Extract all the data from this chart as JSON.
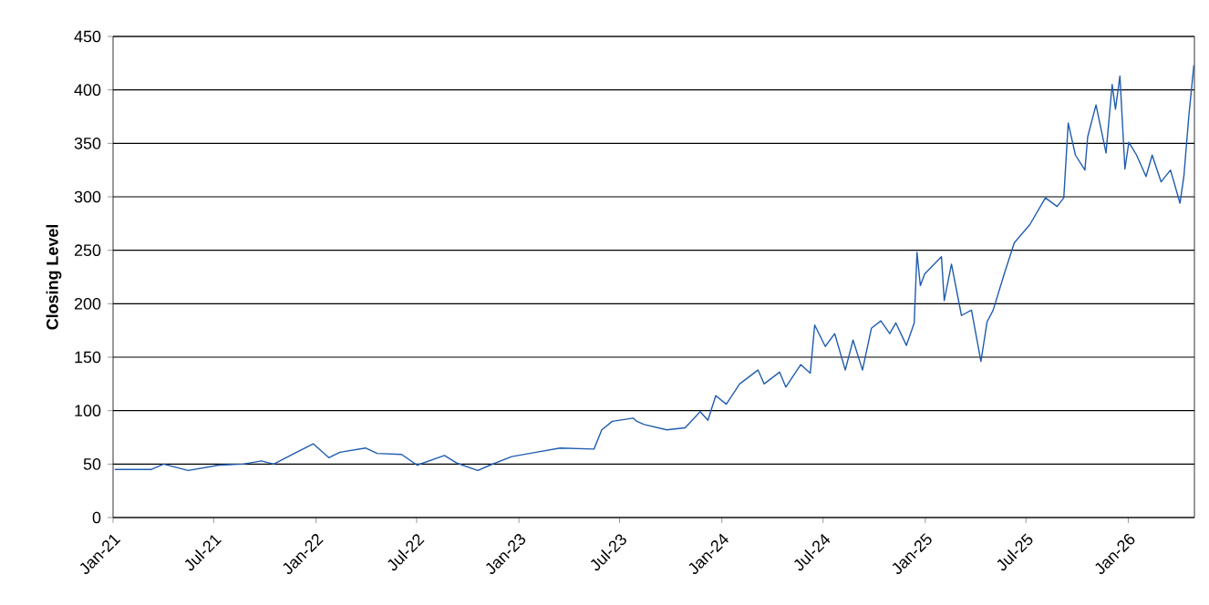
{
  "chart_data": {
    "type": "line",
    "ylabel": "Closing Level",
    "color": "#1f5cb0",
    "grid": "y",
    "marker": "none",
    "line_style": "solid",
    "xlim": [
      "2021-01-01",
      "2026-04-30"
    ],
    "ylim": [
      0,
      450
    ],
    "yticks": [
      0,
      50,
      100,
      150,
      200,
      250,
      300,
      350,
      400,
      450
    ],
    "xticks": [
      {
        "value": "2021-01-01",
        "label": "Jan-21"
      },
      {
        "value": "2021-07-01",
        "label": "Jul-21"
      },
      {
        "value": "2022-01-01",
        "label": "Jan-22"
      },
      {
        "value": "2022-07-01",
        "label": "Jul-22"
      },
      {
        "value": "2023-01-01",
        "label": "Jan-23"
      },
      {
        "value": "2023-07-01",
        "label": "Jul-23"
      },
      {
        "value": "2024-01-01",
        "label": "Jan-24"
      },
      {
        "value": "2024-07-01",
        "label": "Jul-24"
      },
      {
        "value": "2025-01-01",
        "label": "Jan-25"
      },
      {
        "value": "2025-07-01",
        "label": "Jul-25"
      },
      {
        "value": "2026-01-01",
        "label": "Jan-26"
      }
    ],
    "x": [
      "2021-01-04",
      "2021-03-11",
      "2021-04-02",
      "2021-05-16",
      "2021-07-10",
      "2021-08-23",
      "2021-09-25",
      "2021-10-17",
      "2021-11-19",
      "2021-12-27",
      "2022-01-24",
      "2022-02-13",
      "2022-03-31",
      "2022-04-21",
      "2022-06-04",
      "2022-07-02",
      "2022-08-20",
      "2022-09-11",
      "2022-10-19",
      "2022-11-10",
      "2022-12-19",
      "2023-02-01",
      "2023-03-16",
      "2023-05-16",
      "2023-05-30",
      "2023-06-18",
      "2023-07-26",
      "2023-08-01",
      "2023-08-14",
      "2023-09-24",
      "2023-10-27",
      "2023-11-23",
      "2023-12-07",
      "2023-12-21",
      "2024-01-09",
      "2024-02-02",
      "2024-03-06",
      "2024-03-17",
      "2024-04-14",
      "2024-04-25",
      "2024-05-22",
      "2024-06-08",
      "2024-06-16",
      "2024-07-05",
      "2024-07-22",
      "2024-08-10",
      "2024-08-24",
      "2024-09-10",
      "2024-09-26",
      "2024-10-13",
      "2024-10-29",
      "2024-11-09",
      "2024-11-28",
      "2024-12-12",
      "2024-12-17",
      "2024-12-23",
      "2024-12-31",
      "2025-01-30",
      "2025-02-04",
      "2025-02-17",
      "2025-03-07",
      "2025-03-25",
      "2025-04-11",
      "2025-04-22",
      "2025-05-03",
      "2025-05-23",
      "2025-06-10",
      "2025-07-08",
      "2025-08-05",
      "2025-08-26",
      "2025-09-07",
      "2025-09-15",
      "2025-09-28",
      "2025-10-15",
      "2025-10-20",
      "2025-11-04",
      "2025-11-22",
      "2025-12-03",
      "2025-12-09",
      "2025-12-17",
      "2025-12-26",
      "2026-01-02",
      "2026-01-16",
      "2026-02-02",
      "2026-02-13",
      "2026-03-01",
      "2026-03-18",
      "2026-04-04",
      "2026-04-11",
      "2026-04-20",
      "2026-04-29"
    ],
    "values": [
      45,
      45,
      50,
      44,
      49,
      50,
      53,
      50,
      59,
      69,
      56,
      61,
      65,
      60,
      59,
      49,
      58,
      51,
      44,
      49,
      57,
      61,
      65,
      64,
      82,
      90,
      93,
      90,
      87,
      82,
      84,
      99,
      91,
      114,
      106,
      125,
      138,
      125,
      136,
      122,
      143,
      135,
      180,
      160,
      172,
      138,
      166,
      138,
      177,
      184,
      172,
      182,
      161,
      182,
      248,
      217,
      228,
      244,
      203,
      237,
      189,
      194,
      146,
      183,
      194,
      228,
      257,
      274,
      299,
      291,
      299,
      369,
      339,
      325,
      356,
      386,
      341,
      405,
      382,
      413,
      326,
      351,
      339,
      319,
      339,
      314,
      325,
      294,
      319,
      376,
      423
    ]
  }
}
